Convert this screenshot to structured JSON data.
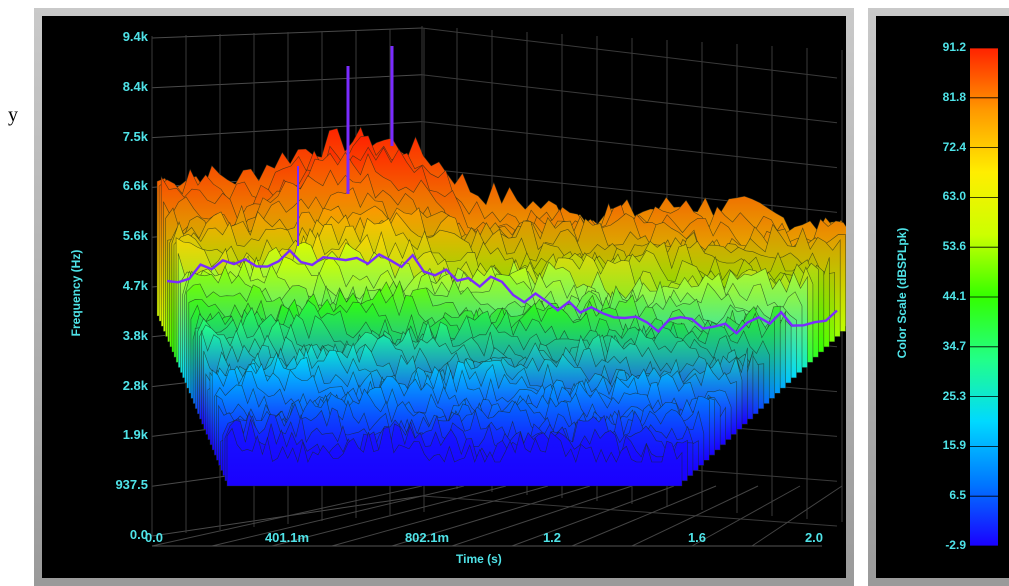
{
  "stray_text": "y",
  "chart_data": {
    "type": "surface3d",
    "ylabel": "Frequency (Hz)",
    "xlabel": "Time (s)",
    "colorbar_label": "Color Scale (dBSPLpk)",
    "y_ticks": [
      "9.4k",
      "8.4k",
      "7.5k",
      "6.6k",
      "5.6k",
      "4.7k",
      "3.8k",
      "2.8k",
      "1.9k",
      "937.5",
      "0.0"
    ],
    "x_ticks": [
      "0.0",
      "401.1m",
      "802.1m",
      "1.2",
      "1.6",
      "2.0"
    ],
    "colorbar_ticks": [
      "91.2",
      "81.8",
      "72.4",
      "63.0",
      "53.6",
      "44.1",
      "34.7",
      "25.3",
      "15.9",
      "6.5",
      "-2.9"
    ],
    "colorbar_range": [
      -2.9,
      91.2
    ],
    "colormap": [
      "#1a00ff",
      "#0077ff",
      "#00d9ff",
      "#22ff88",
      "#33ff00",
      "#ccff00",
      "#ffee00",
      "#ff9900",
      "#ff2200"
    ],
    "grid": true
  }
}
